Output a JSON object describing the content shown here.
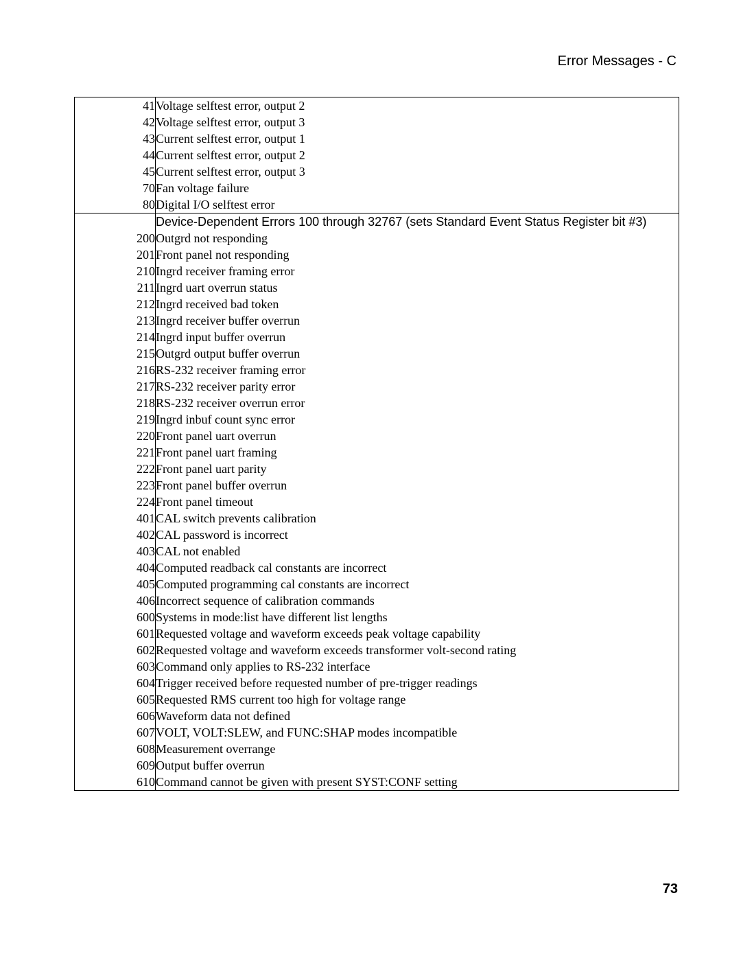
{
  "header": {
    "title": "Error Messages - C"
  },
  "page_number": "73",
  "table": {
    "rows": [
      {
        "code": "41",
        "desc": "Voltage selftest error, output 2",
        "first": true
      },
      {
        "code": "42",
        "desc": "Voltage selftest error, output 3"
      },
      {
        "code": "43",
        "desc": "Current selftest error, output 1"
      },
      {
        "code": "44",
        "desc": "Current selftest error, output 2"
      },
      {
        "code": "45",
        "desc": "Current selftest error, output 3"
      },
      {
        "code": "70",
        "desc": "Fan voltage failure"
      },
      {
        "code": "80",
        "desc": "Digital I/O selftest error"
      },
      {
        "code": "",
        "desc": "Device-Dependent Errors 100 through 32767 (sets Standard Event Status Register bit #3)",
        "sep": true,
        "section": true
      },
      {
        "code": "200",
        "desc": "Outgrd not responding"
      },
      {
        "code": "201",
        "desc": "Front panel not responding"
      },
      {
        "code": "210",
        "desc": "Ingrd receiver framing error"
      },
      {
        "code": "211",
        "desc": "Ingrd uart overrun status"
      },
      {
        "code": "212",
        "desc": "Ingrd received bad token"
      },
      {
        "code": "213",
        "desc": "Ingrd receiver buffer overrun"
      },
      {
        "code": "214",
        "desc": "Ingrd input buffer overrun"
      },
      {
        "code": "215",
        "desc": "Outgrd output buffer overrun"
      },
      {
        "code": "216",
        "desc": "RS-232 receiver framing error"
      },
      {
        "code": "217",
        "desc": "RS-232 receiver parity error"
      },
      {
        "code": "218",
        "desc": "RS-232 receiver overrun error"
      },
      {
        "code": "219",
        "desc": "Ingrd inbuf count sync error"
      },
      {
        "code": "220",
        "desc": "Front panel uart overrun"
      },
      {
        "code": "221",
        "desc": "Front panel uart framing"
      },
      {
        "code": "222",
        "desc": "Front panel uart parity"
      },
      {
        "code": "223",
        "desc": "Front panel buffer overrun"
      },
      {
        "code": "224",
        "desc": "Front panel timeout"
      },
      {
        "code": "401",
        "desc": "CAL switch prevents calibration"
      },
      {
        "code": "402",
        "desc": "CAL password is incorrect"
      },
      {
        "code": "403",
        "desc": "CAL not enabled"
      },
      {
        "code": "404",
        "desc": "Computed readback cal constants are incorrect"
      },
      {
        "code": "405",
        "desc": "Computed programming cal constants are incorrect"
      },
      {
        "code": "406",
        "desc": "Incorrect sequence of calibration commands"
      },
      {
        "code": "600",
        "desc": "Systems in mode:list have different list lengths"
      },
      {
        "code": "601",
        "desc": "Requested voltage and waveform exceeds peak voltage capability"
      },
      {
        "code": "602",
        "desc": "Requested voltage and waveform exceeds transformer volt-second rating"
      },
      {
        "code": "603",
        "desc": "Command only applies to RS-232 interface"
      },
      {
        "code": "604",
        "desc": "Trigger received before requested number of pre-trigger readings"
      },
      {
        "code": "605",
        "desc": "Requested RMS current too high for voltage range"
      },
      {
        "code": "606",
        "desc": "Waveform data not defined"
      },
      {
        "code": "607",
        "desc": "VOLT, VOLT:SLEW, and FUNC:SHAP modes incompatible"
      },
      {
        "code": "608",
        "desc": "Measurement overrange"
      },
      {
        "code": "609",
        "desc": "Output buffer overrun"
      },
      {
        "code": "610",
        "desc": "Command cannot be given with present SYST:CONF setting",
        "last": true
      }
    ]
  }
}
